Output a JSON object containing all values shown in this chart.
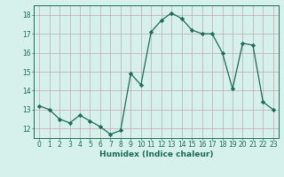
{
  "x": [
    0,
    1,
    2,
    3,
    4,
    5,
    6,
    7,
    8,
    9,
    10,
    11,
    12,
    13,
    14,
    15,
    16,
    17,
    18,
    19,
    20,
    21,
    22,
    23
  ],
  "y": [
    13.2,
    13.0,
    12.5,
    12.3,
    12.7,
    12.4,
    12.1,
    11.7,
    11.9,
    14.9,
    14.3,
    17.1,
    17.7,
    18.1,
    17.8,
    17.2,
    17.0,
    17.0,
    16.0,
    14.1,
    16.5,
    16.4,
    13.4,
    13.0
  ],
  "line_color": "#1a6b5a",
  "bg_color": "#d6f0eb",
  "grid_color": "#c4b4b8",
  "xlabel": "Humidex (Indice chaleur)",
  "xlim": [
    -0.5,
    23.5
  ],
  "ylim": [
    11.5,
    18.5
  ],
  "yticks": [
    12,
    13,
    14,
    15,
    16,
    17,
    18
  ],
  "xticks": [
    0,
    1,
    2,
    3,
    4,
    5,
    6,
    7,
    8,
    9,
    10,
    11,
    12,
    13,
    14,
    15,
    16,
    17,
    18,
    19,
    20,
    21,
    22,
    23
  ],
  "label_fontsize": 6.5,
  "tick_fontsize": 5.5
}
